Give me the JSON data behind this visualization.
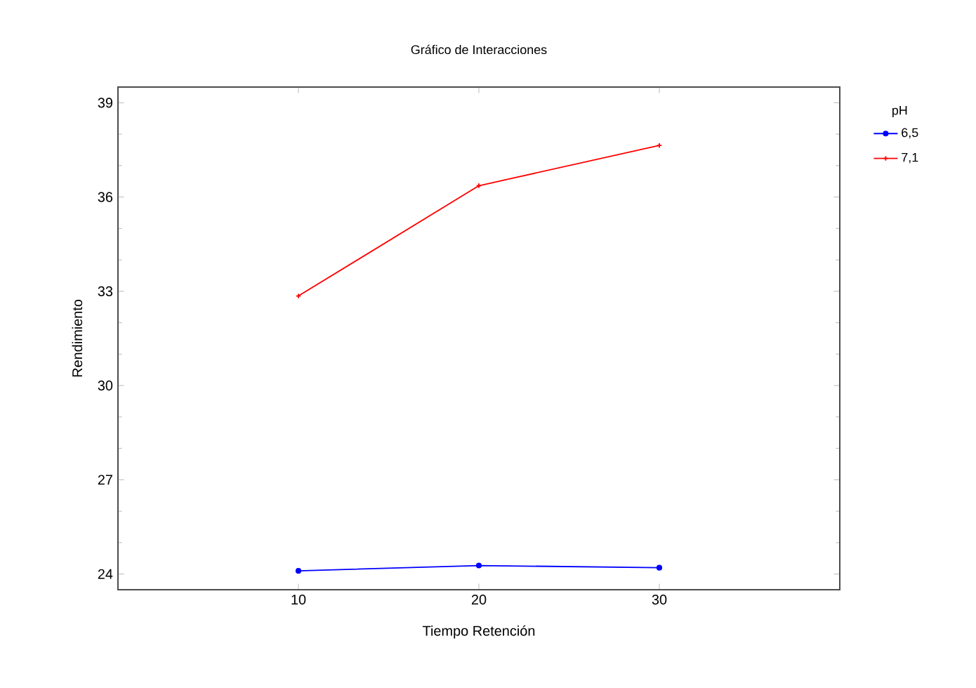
{
  "chart_data": {
    "type": "line",
    "title": "Gráfico de Interacciones",
    "xlabel": "Tiempo Retención",
    "ylabel": "Rendimiento",
    "legend_title": "pH",
    "x": [
      10,
      20,
      30
    ],
    "series": [
      {
        "name": "6,5",
        "color": "#0000ff",
        "values": [
          24.1,
          24.27,
          24.2
        ]
      },
      {
        "name": "7,1",
        "color": "#ff0000",
        "values": [
          32.85,
          36.36,
          37.64
        ],
        "marker": "cross"
      }
    ],
    "xlim": [
      0,
      40
    ],
    "ylim": [
      23.5,
      39.5
    ],
    "xticks": [
      10,
      20,
      30
    ],
    "yticks": [
      24,
      27,
      30,
      33,
      36,
      39
    ],
    "legend": "top right",
    "marker": "circle",
    "line_style": "solid",
    "grid": false
  }
}
